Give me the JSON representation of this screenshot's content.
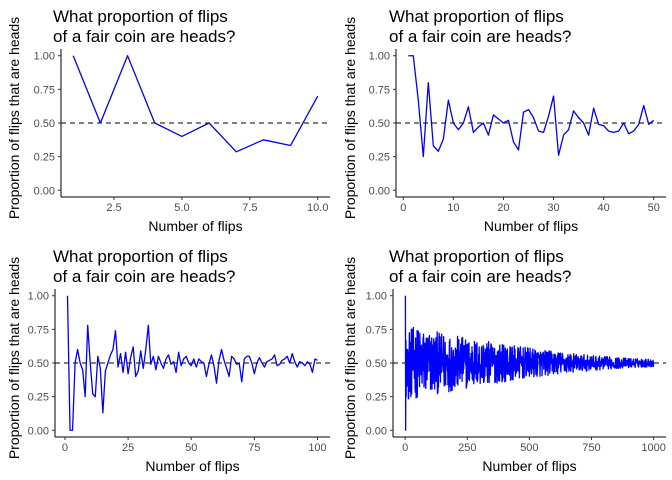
{
  "colors": {
    "line": "#0000ff",
    "reference_line": "#000000",
    "axis": "#000000",
    "tick_text": "#4d4d4d"
  },
  "chart_data": [
    {
      "type": "line",
      "title_lines": [
        "What proportion of flips",
        " of a fair coin are heads?"
      ],
      "xlabel": "Number of flips",
      "ylabel": "Proportion of flips that are heads",
      "xlim": [
        0.55,
        10.45
      ],
      "ylim": [
        -0.05,
        1.05
      ],
      "xticks": [
        2.5,
        5.0,
        7.5,
        10.0
      ],
      "xtick_labels": [
        "2.5",
        "5.0",
        "7.5",
        "10.0"
      ],
      "yticks": [
        0,
        0.25,
        0.5,
        0.75,
        1.0
      ],
      "ytick_labels": [
        "0.00",
        "0.25",
        "0.50",
        "0.75",
        "1.00"
      ],
      "reference_line": {
        "y": 0.5,
        "style": "dashed"
      },
      "series": [
        {
          "x_start": 1,
          "values": [
            1.0,
            0.5,
            1.0,
            0.5,
            0.4,
            0.5,
            0.286,
            0.375,
            0.333,
            0.7
          ]
        }
      ]
    },
    {
      "type": "line",
      "title_lines": [
        "What proportion of flips",
        " of a fair coin are heads?"
      ],
      "xlabel": "Number of flips",
      "ylabel": "Proportion of flips that are heads",
      "xlim": [
        -1.45,
        52.45
      ],
      "ylim": [
        -0.05,
        1.05
      ],
      "xticks": [
        0,
        10,
        20,
        30,
        40,
        50
      ],
      "xtick_labels": [
        "0",
        "10",
        "20",
        "30",
        "40",
        "50"
      ],
      "yticks": [
        0,
        0.25,
        0.5,
        0.75,
        1.0
      ],
      "ytick_labels": [
        "0.00",
        "0.25",
        "0.50",
        "0.75",
        "1.00"
      ],
      "reference_line": {
        "y": 0.5,
        "style": "dashed"
      },
      "series": [
        {
          "x_start": 1,
          "values": [
            1.0,
            1.0,
            0.67,
            0.25,
            0.8,
            0.33,
            0.29,
            0.38,
            0.67,
            0.5,
            0.45,
            0.5,
            0.62,
            0.43,
            0.47,
            0.5,
            0.41,
            0.56,
            0.53,
            0.5,
            0.52,
            0.36,
            0.3,
            0.58,
            0.6,
            0.54,
            0.44,
            0.43,
            0.55,
            0.7,
            0.26,
            0.41,
            0.45,
            0.59,
            0.54,
            0.5,
            0.41,
            0.61,
            0.49,
            0.48,
            0.44,
            0.43,
            0.44,
            0.5,
            0.42,
            0.44,
            0.49,
            0.63,
            0.49,
            0.52
          ]
        }
      ]
    },
    {
      "type": "line",
      "title_lines": [
        "What proportion of flips",
        " of a fair coin are heads?"
      ],
      "xlabel": "Number of flips",
      "ylabel": "Proportion of flips that are heads",
      "xlim": [
        -3.95,
        104.95
      ],
      "ylim": [
        -0.05,
        1.05
      ],
      "xticks": [
        0,
        25,
        50,
        75,
        100
      ],
      "xtick_labels": [
        "0",
        "25",
        "50",
        "75",
        "100"
      ],
      "yticks": [
        0,
        0.25,
        0.5,
        0.75,
        1.0
      ],
      "ytick_labels": [
        "0.00",
        "0.25",
        "0.50",
        "0.75",
        "1.00"
      ],
      "reference_line": {
        "y": 0.5,
        "style": "dashed"
      },
      "series": [
        {
          "x_start": 1,
          "values": [
            1.0,
            0.0,
            0.0,
            0.5,
            0.6,
            0.5,
            0.45,
            0.25,
            0.78,
            0.5,
            0.27,
            0.25,
            0.55,
            0.46,
            0.13,
            0.44,
            0.5,
            0.56,
            0.6,
            0.74,
            0.47,
            0.57,
            0.43,
            0.58,
            0.42,
            0.54,
            0.62,
            0.4,
            0.44,
            0.59,
            0.46,
            0.6,
            0.78,
            0.49,
            0.55,
            0.45,
            0.55,
            0.5,
            0.46,
            0.53,
            0.56,
            0.49,
            0.51,
            0.43,
            0.58,
            0.48,
            0.53,
            0.55,
            0.5,
            0.48,
            0.53,
            0.47,
            0.53,
            0.51,
            0.5,
            0.4,
            0.49,
            0.56,
            0.48,
            0.35,
            0.52,
            0.6,
            0.52,
            0.46,
            0.4,
            0.55,
            0.53,
            0.49,
            0.5,
            0.36,
            0.53,
            0.55,
            0.55,
            0.5,
            0.42,
            0.5,
            0.54,
            0.5,
            0.47,
            0.51,
            0.52,
            0.53,
            0.56,
            0.48,
            0.49,
            0.52,
            0.53,
            0.55,
            0.5,
            0.57,
            0.51,
            0.47,
            0.51,
            0.5,
            0.48,
            0.51,
            0.49,
            0.43,
            0.53,
            0.52
          ]
        }
      ]
    },
    {
      "type": "line",
      "title_lines": [
        "What proportion of flips",
        " of a fair coin are heads?"
      ],
      "xlabel": "Number of flips",
      "ylabel": "Proportion of flips that are heads",
      "xlim": [
        -48.95,
        1049.95
      ],
      "ylim": [
        -0.05,
        1.05
      ],
      "xticks": [
        0,
        250,
        500,
        750,
        1000
      ],
      "xtick_labels": [
        "0",
        "250",
        "500",
        "750",
        "1000"
      ],
      "yticks": [
        0,
        0.25,
        0.5,
        0.75,
        1.0
      ],
      "ytick_labels": [
        "0.00",
        "0.25",
        "0.50",
        "0.75",
        "1.00"
      ],
      "reference_line": {
        "y": 0.5,
        "style": "dashed"
      },
      "series": [
        {
          "x_start": 1,
          "count": 1000,
          "first_values": [
            1.0,
            0.0,
            0.67,
            0.25,
            0.6,
            0.33,
            0.57,
            0.5,
            0.33,
            0.6,
            0.45,
            0.58
          ],
          "spread_start": 0.25,
          "spread_end": 0.03
        }
      ]
    }
  ]
}
